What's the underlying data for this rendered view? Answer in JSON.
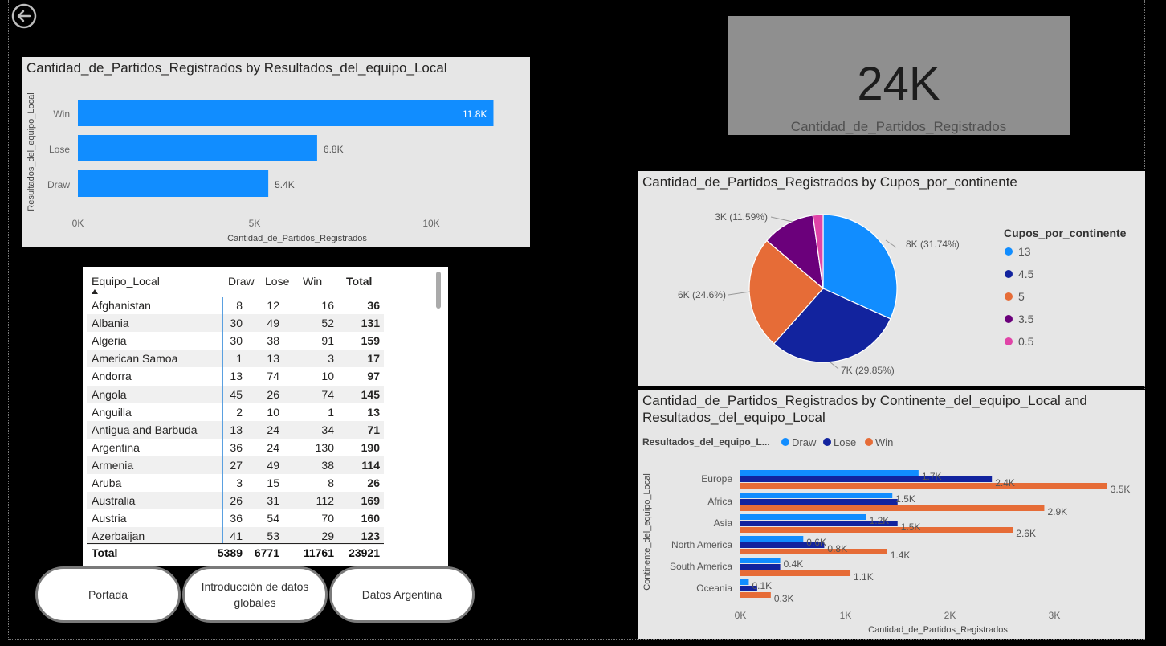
{
  "kpi": {
    "value": "24K",
    "label": "Cantidad_de_Partidos_Registrados"
  },
  "bar_chart": {
    "title": "Cantidad_de_Partidos_Registrados by Resultados_del_equipo_Local",
    "ylabel": "Resultados_del_equipo_Local",
    "xlabel": "Cantidad_de_Partidos_Registrados",
    "x_ticks": [
      "0K",
      "5K",
      "10K"
    ],
    "bar_color": "#118dff"
  },
  "pie_chart": {
    "title": "Cantidad_de_Partidos_Registrados by Cupos_por_continente",
    "legend_title": "Cupos_por_continente"
  },
  "cluster_chart": {
    "title_line1": "Cantidad_de_Partidos_Registrados by Continente_del_equipo_Local and",
    "title_line2": "Resultados_del_equipo_Local",
    "legend_title": "Resultados_del_equipo_L...",
    "ylabel": "Continente_del_equipo_Local",
    "xlabel": "Cantidad_de_Partidos_Registrados",
    "x_ticks": [
      "0K",
      "1K",
      "2K",
      "3K"
    ]
  },
  "chart_data": [
    {
      "type": "bar",
      "categories": [
        "Win",
        "Lose",
        "Draw"
      ],
      "values": [
        11761,
        6771,
        5389
      ],
      "data_labels": [
        "11.8K",
        "6.8K",
        "5.4K"
      ],
      "xlim": [
        0,
        12000
      ]
    },
    {
      "type": "pie",
      "labels": [
        "13",
        "4.5",
        "5",
        "3.5",
        "0.5"
      ],
      "values": [
        31.74,
        29.85,
        24.6,
        11.59,
        2.22
      ],
      "data_labels": [
        "8K (31.74%)",
        "7K (29.85%)",
        "6K (24.6%)",
        "3K (11.59%)",
        ""
      ],
      "colors": [
        "#118dff",
        "#12239e",
        "#e66c37",
        "#6b007b",
        "#e044a7"
      ],
      "legend": "right"
    },
    {
      "type": "bar",
      "categories": [
        "Europe",
        "Africa",
        "Asia",
        "North America",
        "South America",
        "Oceania"
      ],
      "series": [
        {
          "name": "Draw",
          "color": "#118dff",
          "values": [
            1700,
            1450,
            1200,
            600,
            380,
            80
          ],
          "labels": [
            "1.7K",
            "1.5K",
            "1.2K",
            "0.6K",
            "0.4K",
            "0.1K"
          ]
        },
        {
          "name": "Lose",
          "color": "#12239e",
          "values": [
            2400,
            1500,
            1500,
            800,
            380,
            160
          ],
          "labels": [
            "2.4K",
            "",
            "1.5K",
            "0.8K",
            "",
            ""
          ]
        },
        {
          "name": "Win",
          "color": "#e66c37",
          "values": [
            3500,
            2900,
            2600,
            1400,
            1050,
            290
          ],
          "labels": [
            "3.5K",
            "2.9K",
            "2.6K",
            "1.4K",
            "1.1K",
            "0.3K"
          ]
        }
      ],
      "xlim": [
        0,
        3600
      ]
    }
  ],
  "table": {
    "headers": [
      "Equipo_Local",
      "Draw",
      "Lose",
      "Win",
      "Total"
    ],
    "rows": [
      [
        "Afghanistan",
        "8",
        "12",
        "16",
        "36"
      ],
      [
        "Albania",
        "30",
        "49",
        "52",
        "131"
      ],
      [
        "Algeria",
        "30",
        "38",
        "91",
        "159"
      ],
      [
        "American Samoa",
        "1",
        "13",
        "3",
        "17"
      ],
      [
        "Andorra",
        "13",
        "74",
        "10",
        "97"
      ],
      [
        "Angola",
        "45",
        "26",
        "74",
        "145"
      ],
      [
        "Anguilla",
        "2",
        "10",
        "1",
        "13"
      ],
      [
        "Antigua and Barbuda",
        "13",
        "24",
        "34",
        "71"
      ],
      [
        "Argentina",
        "36",
        "24",
        "130",
        "190"
      ],
      [
        "Armenia",
        "27",
        "49",
        "38",
        "114"
      ],
      [
        "Aruba",
        "3",
        "15",
        "8",
        "26"
      ],
      [
        "Australia",
        "26",
        "31",
        "112",
        "169"
      ],
      [
        "Austria",
        "36",
        "54",
        "70",
        "160"
      ],
      [
        "Azerbaijan",
        "41",
        "53",
        "29",
        "123"
      ]
    ],
    "total": [
      "Total",
      "5389",
      "6771",
      "11761",
      "23921"
    ]
  },
  "nav": {
    "portada": "Portada",
    "intro_line1": "Introducción de datos",
    "intro_line2": "globales",
    "argentina": "Datos Argentina"
  }
}
